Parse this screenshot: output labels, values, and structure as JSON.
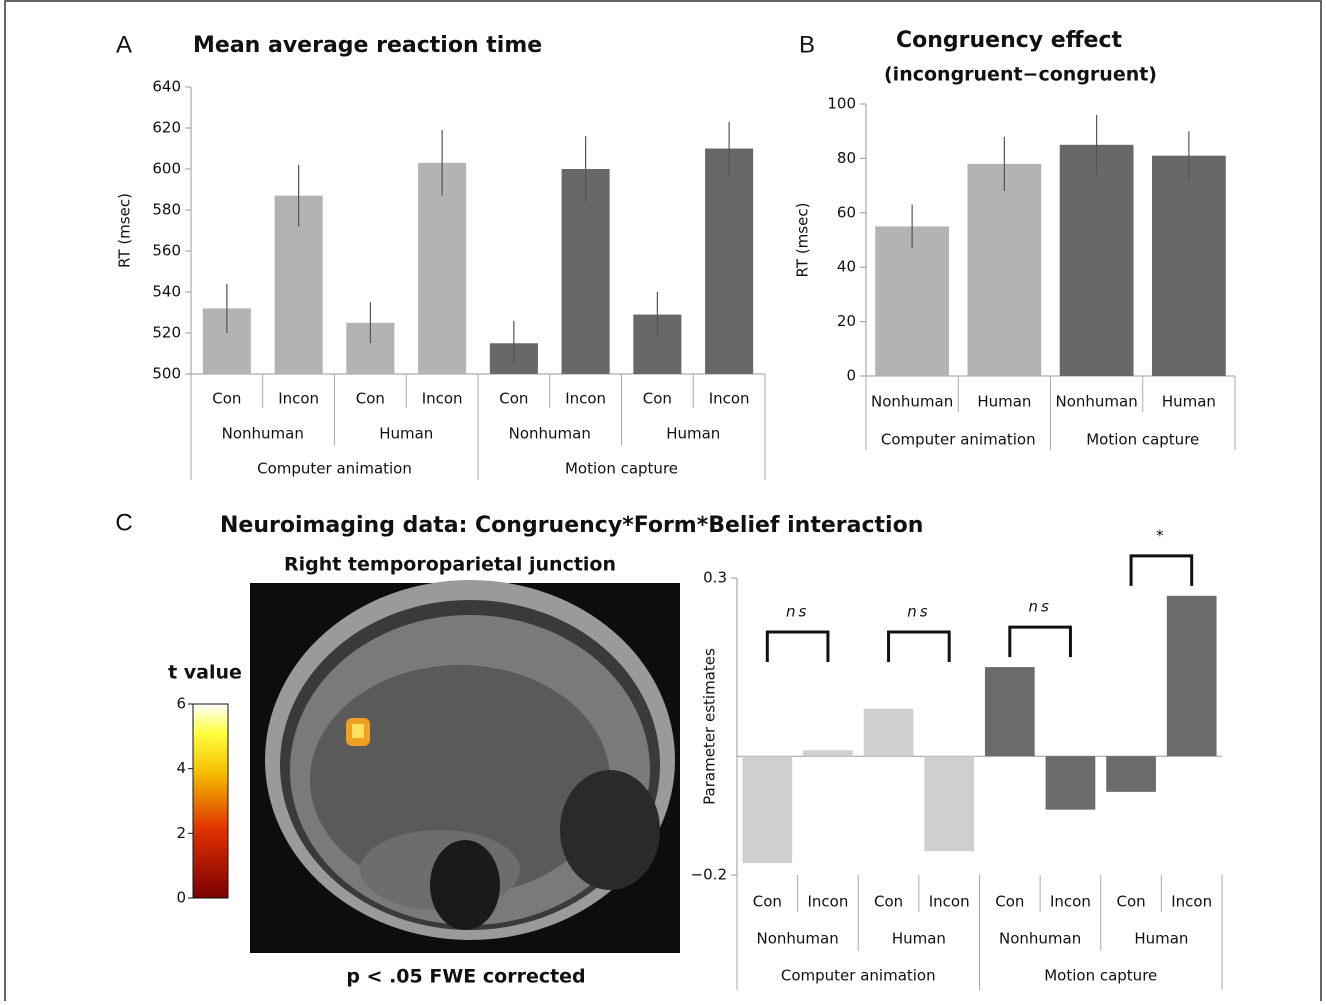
{
  "chart_data": [
    {
      "type": "bar",
      "panel": "A",
      "title": "Mean average reaction time",
      "ylabel": "RT (msec)",
      "categories": [
        "Con",
        "Incon",
        "Con",
        "Incon",
        "Con",
        "Incon",
        "Con",
        "Incon"
      ],
      "groups": [
        "Nonhuman",
        "Human",
        "Nonhuman",
        "Human"
      ],
      "supergroups": [
        "Computer animation",
        "Motion capture"
      ],
      "values": [
        532,
        587,
        525,
        603,
        515,
        600,
        529,
        610
      ],
      "errors": [
        12,
        15,
        10,
        16,
        11,
        16,
        11,
        13
      ],
      "bar_colors": [
        "#b3b3b3",
        "#b3b3b3",
        "#b3b3b3",
        "#b3b3b3",
        "#686868",
        "#686868",
        "#686868",
        "#686868"
      ],
      "ylim": [
        500,
        640
      ],
      "yticks": [
        500,
        520,
        540,
        560,
        580,
        600,
        620,
        640
      ]
    },
    {
      "type": "bar",
      "panel": "B",
      "title": "Congruency effect",
      "subtitle": "(incongruent−congruent)",
      "ylabel": "RT (msec)",
      "categories": [
        "Nonhuman",
        "Human",
        "Nonhuman",
        "Human"
      ],
      "groups": [
        "Computer animation",
        "Motion capture"
      ],
      "values": [
        55,
        78,
        85,
        81
      ],
      "errors": [
        8,
        10,
        11,
        9
      ],
      "bar_colors": [
        "#b3b3b3",
        "#b3b3b3",
        "#686868",
        "#686868"
      ],
      "ylim": [
        0,
        100
      ],
      "yticks": [
        0,
        20,
        40,
        60,
        80,
        100
      ]
    },
    {
      "type": "bar",
      "panel": "C",
      "title": "Neuroimaging data: Congruency*Form*Belief interaction",
      "ylabel": "Parameter estimates",
      "categories": [
        "Con",
        "Incon",
        "Con",
        "Incon",
        "Con",
        "Incon",
        "Con",
        "Incon"
      ],
      "groups": [
        "Nonhuman",
        "Human",
        "Nonhuman",
        "Human"
      ],
      "supergroups": [
        "Computer animation",
        "Motion capture"
      ],
      "values": [
        -0.18,
        0.01,
        0.08,
        -0.16,
        0.15,
        -0.09,
        -0.06,
        0.27
      ],
      "bar_colors": [
        "#cfcfcf",
        "#cfcfcf",
        "#cfcfcf",
        "#cfcfcf",
        "#6b6b6b",
        "#6b6b6b",
        "#6b6b6b",
        "#6b6b6b"
      ],
      "annotations": [
        "ns",
        "ns",
        "ns",
        "*"
      ],
      "ylim": [
        -0.2,
        0.3
      ],
      "yticks": [
        {
          "value": -0.2,
          "label": "−0.2"
        },
        0.3
      ]
    }
  ],
  "brain_panel": {
    "title": "Right temporoparietal junction",
    "caption": "p < .05 FWE corrected",
    "colorbar": {
      "label": "t value",
      "lim": [
        0,
        6
      ],
      "ticks": [
        0,
        2,
        4,
        6
      ]
    }
  }
}
